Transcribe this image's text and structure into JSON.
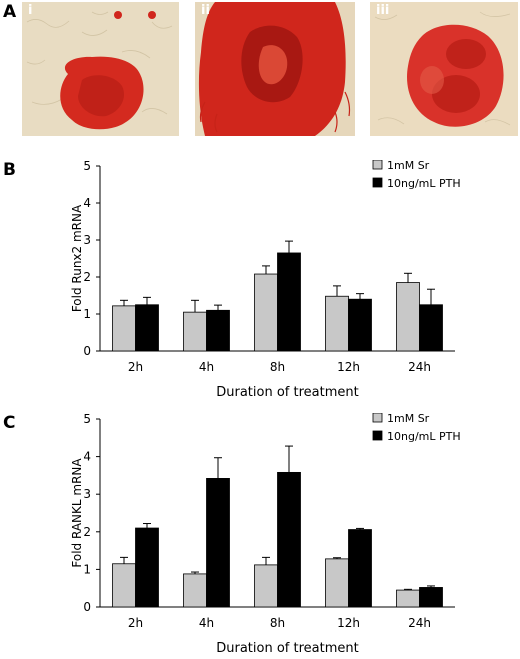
{
  "panels": {
    "a": {
      "letter": "A",
      "subpanels": [
        "i",
        "ii",
        "iii"
      ]
    },
    "b": {
      "letter": "B"
    },
    "c": {
      "letter": "C"
    }
  },
  "colors": {
    "sr": "#c8c8c8",
    "pth": "#000000",
    "stain": "#d0261c",
    "background_tissue": "#e9dcc0"
  },
  "chart_data": [
    {
      "type": "bar",
      "panel": "B",
      "categories": [
        "2h",
        "4h",
        "8h",
        "12h",
        "24h"
      ],
      "series": [
        {
          "name": "1mM Sr",
          "values": [
            1.22,
            1.05,
            2.08,
            1.48,
            1.85
          ],
          "errors": [
            0.15,
            0.32,
            0.22,
            0.28,
            0.25
          ]
        },
        {
          "name": "10ng/mL PTH",
          "values": [
            1.25,
            1.1,
            2.65,
            1.4,
            1.25
          ],
          "errors": [
            0.2,
            0.14,
            0.32,
            0.15,
            0.42
          ]
        }
      ],
      "xlabel": "Duration of treatment",
      "ylabel": "Fold Runx2 mRNA",
      "ylim": [
        0,
        5
      ],
      "yticks": [
        0,
        1,
        2,
        3,
        4,
        5
      ],
      "legend": "top-right",
      "grid": false
    },
    {
      "type": "bar",
      "panel": "C",
      "categories": [
        "2h",
        "4h",
        "8h",
        "12h",
        "24h"
      ],
      "series": [
        {
          "name": "1mM Sr",
          "values": [
            1.15,
            0.88,
            1.12,
            1.28,
            0.45
          ],
          "errors": [
            0.17,
            0.05,
            0.2,
            0.03,
            0.02
          ]
        },
        {
          "name": "10ng/mL PTH",
          "values": [
            2.1,
            3.42,
            3.58,
            2.06,
            0.52
          ],
          "errors": [
            0.12,
            0.55,
            0.7,
            0.03,
            0.04
          ]
        }
      ],
      "xlabel": "Duration of treatment",
      "ylabel": "Fold RANKL mRNA",
      "ylim": [
        0,
        5
      ],
      "yticks": [
        0,
        1,
        2,
        3,
        4,
        5
      ],
      "legend": "top-right",
      "grid": false
    }
  ]
}
